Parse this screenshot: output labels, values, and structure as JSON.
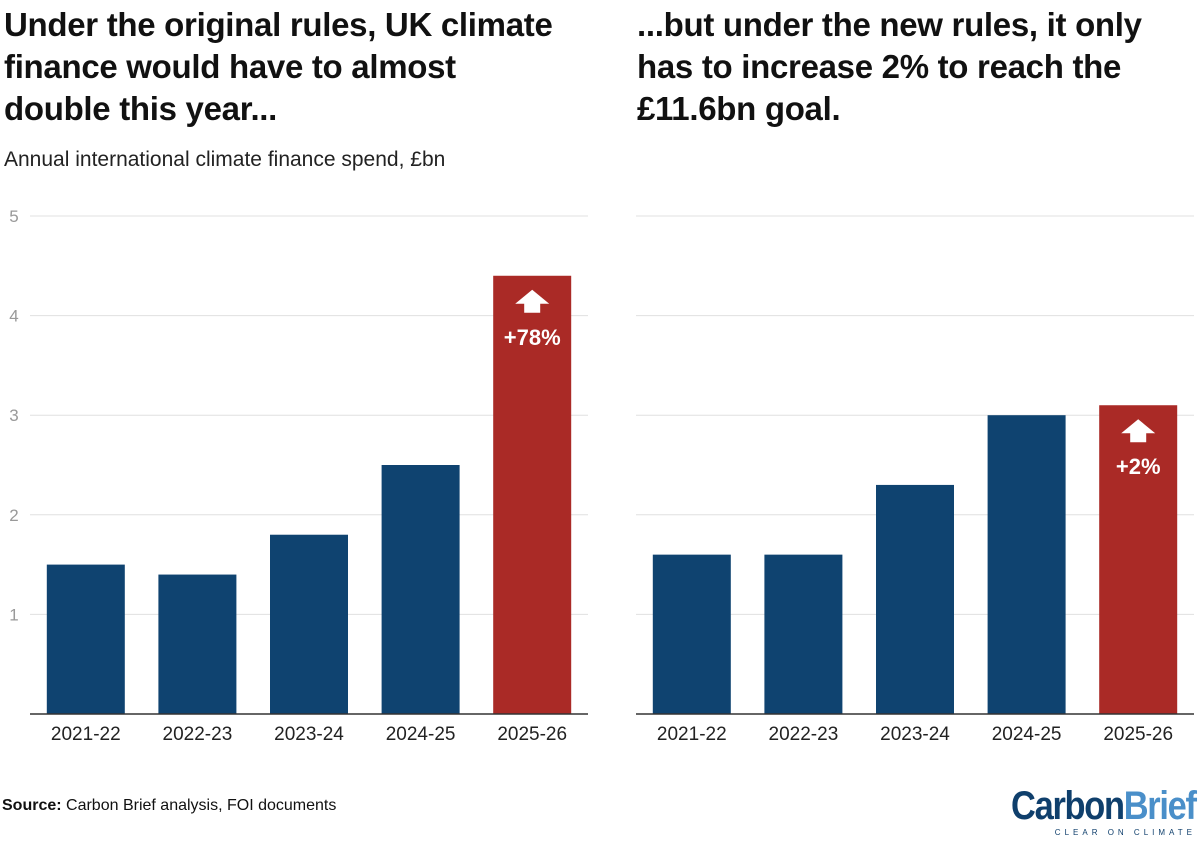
{
  "titles": {
    "left": "Under the original rules, UK climate finance would have to almost double this year...",
    "right": "...but under the new rules, it only has to increase 2% to reach the £11.6bn goal."
  },
  "subtitle": "Annual international climate finance spend, £bn",
  "colors": {
    "base": "#0f4370",
    "highlight": "#aa2a26",
    "grid": "#e0e0e0",
    "axis": "#333333",
    "tick": "#999999"
  },
  "chart_data": [
    {
      "type": "bar",
      "title": "Under the original rules, UK climate finance would have to almost double this year...",
      "ylabel": "Annual international climate finance spend, £bn",
      "categories": [
        "2021-22",
        "2022-23",
        "2023-24",
        "2024-25",
        "2025-26"
      ],
      "values": [
        1.5,
        1.4,
        1.8,
        2.5,
        4.4
      ],
      "highlight_index": 4,
      "annotation": "+78%",
      "ylim": [
        0,
        5
      ],
      "yticks": [
        1,
        2,
        3,
        4,
        5
      ],
      "grid": true
    },
    {
      "type": "bar",
      "title": "...but under the new rules, it only has to increase 2% to reach the £11.6bn goal.",
      "ylabel": "",
      "categories": [
        "2021-22",
        "2022-23",
        "2023-24",
        "2024-25",
        "2025-26"
      ],
      "values": [
        1.6,
        1.6,
        2.3,
        3.0,
        3.1
      ],
      "highlight_index": 4,
      "annotation": "+2%",
      "ylim": [
        0,
        5
      ],
      "yticks": [],
      "grid": true
    }
  ],
  "footer": {
    "source_label": "Source:",
    "source_text": " Carbon Brief analysis, FOI documents"
  },
  "logo": {
    "carbon": "Carbon",
    "brief": "Brief",
    "tagline": "CLEAR ON CLIMATE"
  }
}
